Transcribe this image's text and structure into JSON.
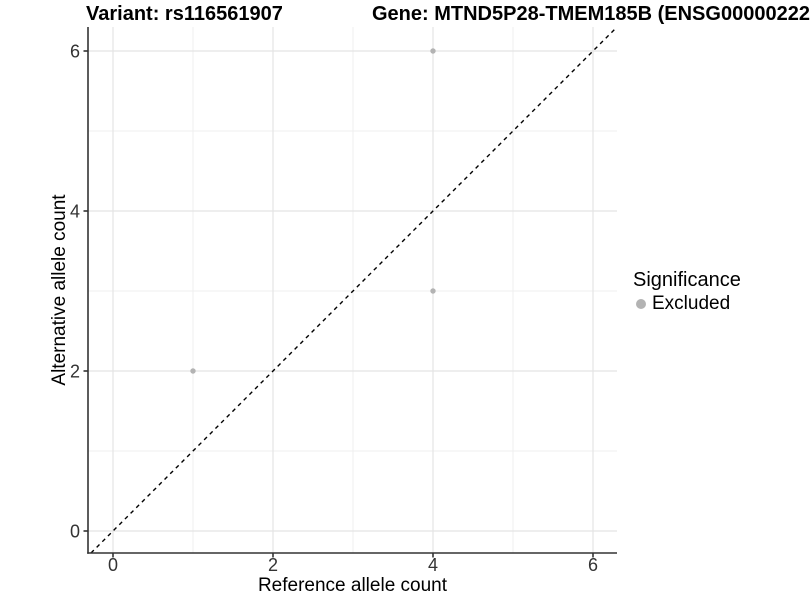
{
  "chart_data": {
    "type": "scatter",
    "titles": {
      "left": "Variant: rs116561907",
      "right": "Gene: MTND5P28-TMEM185B (ENSG00000222"
    },
    "xlabel": "Reference allele count",
    "ylabel": "Alternative allele count",
    "xlim": [
      -0.3125,
      6.3
    ],
    "ylim": [
      -0.275,
      6.3
    ],
    "x_ticks": [
      0,
      2,
      4,
      6
    ],
    "y_ticks": [
      0,
      2,
      4,
      6
    ],
    "x_minor_gridlines": [
      1,
      3,
      5
    ],
    "y_minor_gridlines": [
      1,
      3,
      5
    ],
    "grid": "on",
    "legend": {
      "position": "right",
      "title": "Significance",
      "items": [
        {
          "label": "Excluded",
          "color": "#b3b3b3"
        }
      ]
    },
    "series": [
      {
        "name": "Excluded",
        "color": "#b3b3b3",
        "points": [
          [
            1,
            2
          ],
          [
            4,
            3
          ],
          [
            4,
            6
          ]
        ]
      }
    ],
    "identity_line": {
      "type": "abline",
      "slope": 1,
      "intercept": 0,
      "style": "dashed",
      "color": "#000000"
    },
    "colors": {
      "background": "#ffffff",
      "grid_major": "#e4e4e4",
      "grid_minor": "#efefef",
      "axis": "#333333",
      "tick_label": "#333333",
      "title": "#000000"
    }
  }
}
